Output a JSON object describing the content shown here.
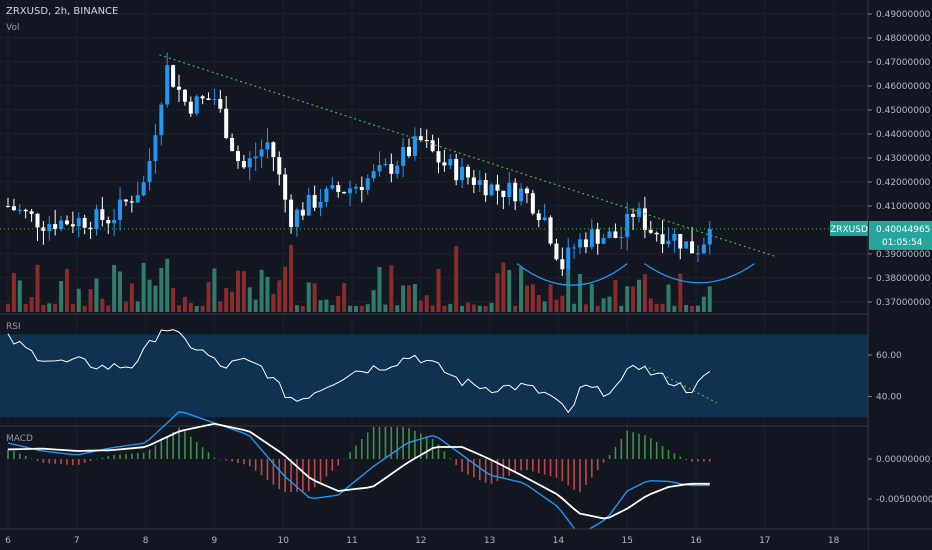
{
  "header": {
    "symbol_line": "ZRXUSD, 2h, BINANCE",
    "volume_label": "Vol"
  },
  "panes": {
    "rsi_label": "RSI",
    "macd_label": "MACD"
  },
  "price_axis": {
    "ticks": [
      {
        "value": 0.49,
        "label": "0.49000000"
      },
      {
        "value": 0.48,
        "label": "0.48000000"
      },
      {
        "value": 0.47,
        "label": "0.47000000"
      },
      {
        "value": 0.46,
        "label": "0.46000000"
      },
      {
        "value": 0.45,
        "label": "0.45000000"
      },
      {
        "value": 0.44,
        "label": "0.44000000"
      },
      {
        "value": 0.43,
        "label": "0.43000000"
      },
      {
        "value": 0.42,
        "label": "0.42000000"
      },
      {
        "value": 0.41,
        "label": "0.41000000"
      },
      {
        "value": 0.39,
        "label": "0.39000000"
      },
      {
        "value": 0.38,
        "label": "0.38000000"
      },
      {
        "value": 0.37,
        "label": "0.37000000"
      }
    ],
    "last_price": {
      "value": 0.40044965,
      "label": "0.40044965",
      "tag": "ZRXUSD",
      "countdown": "01:05:54"
    }
  },
  "rsi_axis": {
    "ticks": [
      {
        "value": 60,
        "label": "60.00"
      },
      {
        "value": 40,
        "label": "40.00"
      }
    ]
  },
  "macd_axis": {
    "ticks": [
      {
        "value": 0,
        "label": "0.00000000"
      },
      {
        "value": -0.005,
        "label": "-0.00500000"
      }
    ]
  },
  "time_axis": {
    "labels": [
      "6",
      "7",
      "8",
      "9",
      "10",
      "11",
      "12",
      "13",
      "14",
      "15",
      "16",
      "17",
      "18"
    ]
  },
  "colors": {
    "background": "#131722",
    "up": "#2196f3",
    "down": "#ffffff",
    "volume_up": "#2e7d6a",
    "volume_down": "#8b2c2c",
    "trendline": "#4caf50",
    "rsi_band": "#0f3152",
    "rsi_line": "#ffffff",
    "macd_line": "#2196f3",
    "signal_line": "#ffffff",
    "hist_pos": "#4caf50",
    "hist_neg": "#ef5350",
    "curve": "#2196f3",
    "price_tag": "#26a69a"
  },
  "chart_data": {
    "type": "candlestick",
    "symbol": "ZRXUSD",
    "timeframe": "2h",
    "exchange": "BINANCE",
    "x_domain": [
      5.9,
      18.5
    ],
    "ylim": [
      0.365,
      0.495
    ],
    "rsi_ylim": [
      27,
      80
    ],
    "rsi_band": [
      30,
      70
    ],
    "macd_ylim": [
      -0.0095,
      0.0035
    ],
    "price_keypoints": [
      [
        6.0,
        0.41
      ],
      [
        6.5,
        0.403
      ],
      [
        7.0,
        0.404
      ],
      [
        7.5,
        0.405
      ],
      [
        8.0,
        0.42
      ],
      [
        8.3,
        0.468
      ],
      [
        8.6,
        0.452
      ],
      [
        9.0,
        0.455
      ],
      [
        9.4,
        0.425
      ],
      [
        9.8,
        0.437
      ],
      [
        10.1,
        0.405
      ],
      [
        10.5,
        0.413
      ],
      [
        11.0,
        0.418
      ],
      [
        11.5,
        0.425
      ],
      [
        12.0,
        0.437
      ],
      [
        12.3,
        0.428
      ],
      [
        12.7,
        0.422
      ],
      [
        13.1,
        0.417
      ],
      [
        13.5,
        0.416
      ],
      [
        13.8,
        0.405
      ],
      [
        14.05,
        0.385
      ],
      [
        14.25,
        0.394
      ],
      [
        14.5,
        0.398
      ],
      [
        14.9,
        0.397
      ],
      [
        15.1,
        0.408
      ],
      [
        15.35,
        0.4
      ],
      [
        15.7,
        0.397
      ],
      [
        15.95,
        0.392
      ],
      [
        16.05,
        0.393
      ],
      [
        16.2,
        0.4004
      ]
    ],
    "trendline": [
      [
        8.2,
        0.473
      ],
      [
        17.15,
        0.389
      ]
    ],
    "horizontal_level": 0.40044965,
    "rounded_bottoms": [
      {
        "x_start": 13.4,
        "x_end": 15.0,
        "top": 0.386,
        "bottom": 0.377
      },
      {
        "x_start": 15.25,
        "x_end": 16.85,
        "top": 0.386,
        "bottom": 0.378
      }
    ],
    "rsi_keypoints": [
      [
        6.0,
        68
      ],
      [
        6.4,
        60
      ],
      [
        6.8,
        56
      ],
      [
        7.0,
        57
      ],
      [
        7.4,
        54
      ],
      [
        7.8,
        55
      ],
      [
        8.0,
        62
      ],
      [
        8.25,
        74
      ],
      [
        8.6,
        66
      ],
      [
        8.9,
        60
      ],
      [
        9.1,
        54
      ],
      [
        9.4,
        57
      ],
      [
        9.7,
        54
      ],
      [
        10.0,
        42
      ],
      [
        10.2,
        38
      ],
      [
        10.6,
        45
      ],
      [
        11.0,
        52
      ],
      [
        11.5,
        55
      ],
      [
        11.9,
        60
      ],
      [
        12.2,
        55
      ],
      [
        12.6,
        47
      ],
      [
        13.0,
        44
      ],
      [
        13.5,
        45
      ],
      [
        13.9,
        40
      ],
      [
        14.15,
        31
      ],
      [
        14.35,
        45
      ],
      [
        14.6,
        42
      ],
      [
        14.9,
        45
      ],
      [
        15.1,
        57
      ],
      [
        15.3,
        52
      ],
      [
        15.6,
        48
      ],
      [
        15.9,
        43
      ],
      [
        16.05,
        46
      ],
      [
        16.2,
        52
      ]
    ],
    "rsi_trendline": [
      [
        15.25,
        55
      ],
      [
        16.3,
        37
      ]
    ],
    "macd_keypoints": [
      [
        6.0,
        0.002
      ],
      [
        6.5,
        0.001
      ],
      [
        7.0,
        0.0005
      ],
      [
        7.5,
        0.0014
      ],
      [
        8.0,
        0.002
      ],
      [
        8.5,
        0.006
      ],
      [
        9.0,
        0.0045
      ],
      [
        9.5,
        0.003
      ],
      [
        10.0,
        -0.002
      ],
      [
        10.4,
        -0.005
      ],
      [
        10.8,
        -0.0045
      ],
      [
        11.3,
        -0.001
      ],
      [
        11.8,
        0.002
      ],
      [
        12.2,
        0.003
      ],
      [
        12.6,
        0.0005
      ],
      [
        13.0,
        -0.002
      ],
      [
        13.5,
        -0.003
      ],
      [
        14.0,
        -0.006
      ],
      [
        14.3,
        -0.0095
      ],
      [
        14.7,
        -0.0075
      ],
      [
        15.0,
        -0.004
      ],
      [
        15.3,
        -0.0027
      ],
      [
        15.6,
        -0.0028
      ],
      [
        15.9,
        -0.0033
      ],
      [
        16.2,
        -0.0033
      ]
    ],
    "signal_keypoints": [
      [
        6.0,
        0.0012
      ],
      [
        6.5,
        0.0013
      ],
      [
        7.0,
        0.001
      ],
      [
        7.5,
        0.0011
      ],
      [
        8.0,
        0.0015
      ],
      [
        8.5,
        0.0035
      ],
      [
        9.0,
        0.0044
      ],
      [
        9.5,
        0.0035
      ],
      [
        10.0,
        0.0006
      ],
      [
        10.4,
        -0.0025
      ],
      [
        10.8,
        -0.004
      ],
      [
        11.3,
        -0.0035
      ],
      [
        11.8,
        -0.0005
      ],
      [
        12.2,
        0.0015
      ],
      [
        12.6,
        0.0015
      ],
      [
        13.0,
        0.0
      ],
      [
        13.5,
        -0.0022
      ],
      [
        14.0,
        -0.0045
      ],
      [
        14.3,
        -0.0068
      ],
      [
        14.7,
        -0.0075
      ],
      [
        15.0,
        -0.0062
      ],
      [
        15.3,
        -0.0045
      ],
      [
        15.6,
        -0.0035
      ],
      [
        15.9,
        -0.0031
      ],
      [
        16.2,
        -0.0031
      ]
    ]
  }
}
